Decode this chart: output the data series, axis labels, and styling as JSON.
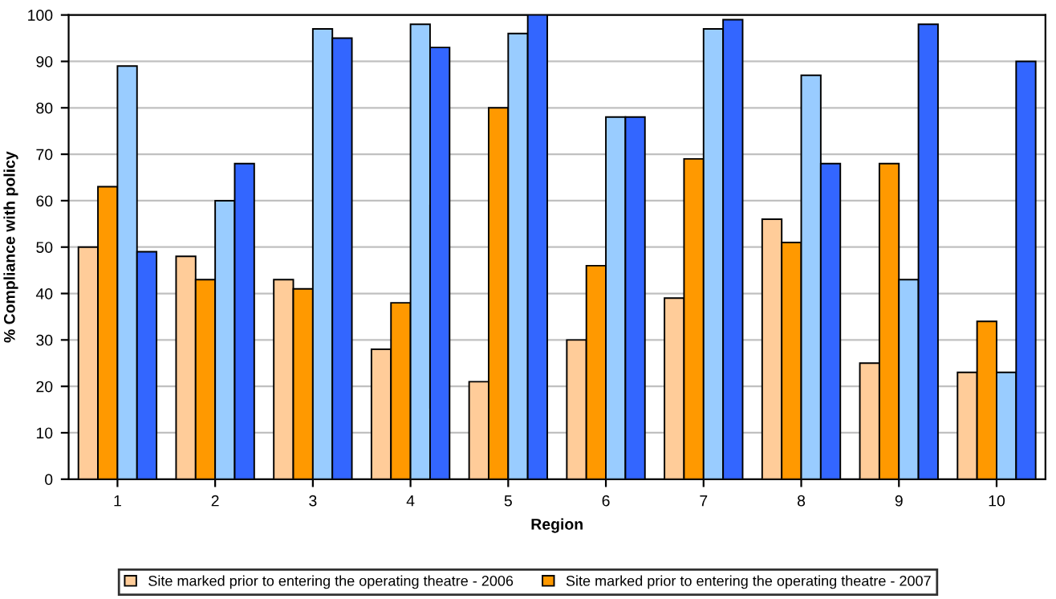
{
  "chart_data": {
    "type": "bar",
    "xlabel": "Region",
    "ylabel": "% Compliance with policy",
    "categories": [
      "1",
      "2",
      "3",
      "4",
      "5",
      "6",
      "7",
      "8",
      "9",
      "10"
    ],
    "series": [
      {
        "name": "Site marked prior to entering the operating theatre - 2006",
        "color": "#ffcc99",
        "values": [
          50,
          48,
          43,
          28,
          21,
          30,
          39,
          56,
          25,
          23
        ]
      },
      {
        "name": "Site marked prior to entering the operating theatre - 2007",
        "color": "#ff9900",
        "values": [
          63,
          43,
          41,
          38,
          80,
          46,
          69,
          51,
          68,
          34
        ]
      },
      {
        "color": "#99ccff",
        "values": [
          89,
          60,
          97,
          98,
          96,
          78,
          97,
          87,
          43,
          23
        ]
      },
      {
        "color": "#3366ff",
        "values": [
          49,
          68,
          95,
          93,
          100,
          78,
          99,
          68,
          98,
          90
        ]
      }
    ],
    "ylim": [
      0,
      100
    ],
    "yticks": [
      0,
      10,
      20,
      30,
      40,
      50,
      60,
      70,
      80,
      90,
      100
    ],
    "grid": "y",
    "legend": "bottom"
  }
}
